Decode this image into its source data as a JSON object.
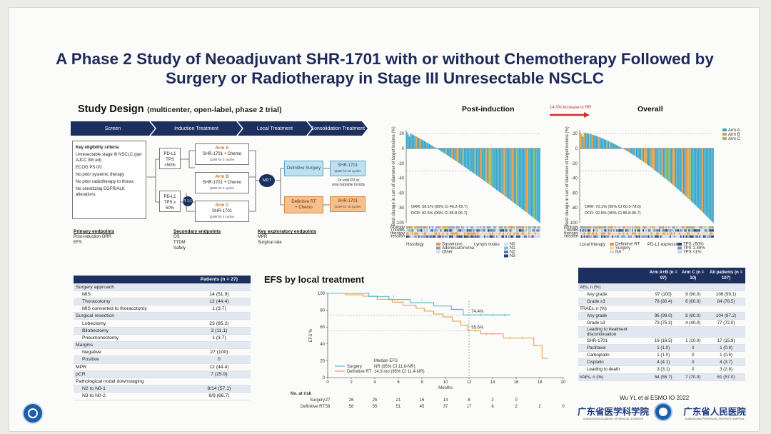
{
  "title_line1": "A Phase 2 Study of Neoadjuvant SHR-1701 with or without Chemotherapy Followed by",
  "title_line2": "Surgery or Radiotherapy in Stage III Unresectable NSCLC",
  "study_design": {
    "title": "Study Design",
    "subtitle": "(multicenter, open-label, phase 2 trial)",
    "phases": [
      "Screen",
      "Induction Treatment",
      "Local Treatment",
      "Consolidation Treatment"
    ],
    "criteria_title": "Key eligibility criteria",
    "criteria": [
      "Unresectable stage III NSCLC (per AJCC 8th ed)",
      "ECOG PS 0/1",
      "No prior systemic therapy",
      "No prior radiotherapy to thorax",
      "No sensitizing EGFR/ALK alterations"
    ],
    "strata": [
      "PD-L1 TPS <50%",
      "PD-L1 TPS ≥ 50%"
    ],
    "arms": [
      {
        "name": "Arm A",
        "regimen": "SHR-1701 + Chemo",
        "sched": "Q3W for 3 cycles"
      },
      {
        "name": "Arm B",
        "regimen": "SHR-1701 + Chemo",
        "sched": "Q3W for 3 cycles"
      },
      {
        "name": "Arm C",
        "regimen": "SHR-1701",
        "sched": "Q3W for 3 cycles"
      }
    ],
    "randomize": "R 1:1",
    "mdt": "MDT",
    "local_surgery": "Definitive Surgery",
    "local_rt_line1": "Definitive RT",
    "local_rt_line2": "+ Chemo",
    "consol_a_name": "SHR-1701",
    "consol_a_sched": "Q3W for 16 cycles",
    "consol_b_name": "SHR-1701",
    "consol_b_sched": "Q3W for 16 cycles",
    "consol_note": "Or until PD or unacceptable toxicity",
    "primary_title": "Primary endpoints",
    "primary": [
      "Post-induction ORR",
      "EFS"
    ],
    "secondary_title": "Secondary endpoints",
    "secondary": [
      "OS",
      "TTDM",
      "Safety"
    ],
    "exploratory_title": "Key exploratory endpoints",
    "exploratory": [
      "MPR",
      "Surgical rate"
    ]
  },
  "waterfall": {
    "post_title": "Post-induction",
    "overall_title": "Overall",
    "increase_label": "14.0% increase in RR",
    "ylabel": "Best change in sum of diameter of target lesions (%)",
    "yticks": [
      "20",
      "0",
      "-20",
      "-40",
      "-60",
      "-80",
      "-100"
    ],
    "post_orr": "ORR: 58.1% (95% CI 46.2-69.7)",
    "post_dcr": "DCR: 92.5% (95% CI 85.8-96.7)",
    "overall_orr": "ORR: 70.1% (95% CI 60.5-78.6)",
    "overall_dcr": "DCR: 92.5% (95% CI 85.8-96.7)",
    "legend_arms": [
      {
        "label": "Arm A",
        "color": "#3aa7c9"
      },
      {
        "label": "Arm B",
        "color": "#e39b43"
      },
      {
        "label": "Arm C",
        "color": "#9ab86a"
      }
    ],
    "row_labels": [
      "Histology",
      "Lymph nodes",
      "Local therapy",
      "PD-L1 expression"
    ],
    "footer_post": [
      "Histology",
      "Lymph nodes"
    ],
    "footer_overall": [
      "Local therapy",
      "PD-L1 expression"
    ],
    "hist_items": [
      "Squamous",
      "Adenocarcinoma",
      "Other"
    ],
    "node_items": [
      "N0",
      "N1",
      "N2",
      "N3"
    ],
    "local_items": [
      "Definitive RT",
      "Surgery",
      "NA"
    ],
    "pdl1_items": [
      "TPS ≥50%",
      "TPS 1-49%",
      "TPS <1%"
    ]
  },
  "surgery_table": {
    "header": [
      "",
      "Patients (n = 27)"
    ],
    "rows": [
      [
        "Surgery approach",
        ""
      ],
      [
        "MIS",
        "14 (51.9)"
      ],
      [
        "Thoracotomy",
        "12 (44.4)"
      ],
      [
        "MIS converted to thoracotomy",
        "1 (3.7)"
      ],
      [
        "Surgical resection",
        ""
      ],
      [
        "Lobectomy",
        "23 (85.2)"
      ],
      [
        "Bilobectomy",
        "3 (11.1)"
      ],
      [
        "Pneumonectomy",
        "1 (3.7)"
      ],
      [
        "Margins",
        ""
      ],
      [
        "Negative",
        "27 (100)"
      ],
      [
        "Positive",
        "0"
      ],
      [
        "MPR",
        "12 (44.4)"
      ],
      [
        "pCR",
        "7 (25.9)"
      ],
      [
        "Pathological nodal downstaging",
        ""
      ],
      [
        "N2 to N0-1",
        "8/14 (57.1)"
      ],
      [
        "N3 to N0-2",
        "6/9 (66.7)"
      ]
    ],
    "indent": [
      false,
      true,
      true,
      true,
      false,
      true,
      true,
      true,
      false,
      true,
      true,
      false,
      false,
      false,
      true,
      true
    ]
  },
  "efs": {
    "title": "EFS by local treatment",
    "ylabel": "EFS %",
    "xlabel": "Months",
    "xticks": [
      "0",
      "2",
      "4",
      "6",
      "8",
      "10",
      "12",
      "14",
      "16",
      "18",
      "20"
    ],
    "yticks": [
      "100",
      "80",
      "60",
      "40",
      "20",
      "0"
    ],
    "label_surgery_rate": "74.4%",
    "label_rt_rate": "55.6%",
    "legend_head": "Median EFS",
    "legend_surgery": "Surgery",
    "legend_surgery_val": "NR (95% CI 11.8-NR)",
    "legend_rt": "Definitive RT",
    "legend_rt_val": "14.9 mo (95% CI 11.4-NR)",
    "risk_title": "No. at risk",
    "risk_surgery_label": "Surgery",
    "risk_rt_label": "Definitive RT",
    "risk_surgery": [
      "27",
      "26",
      "25",
      "21",
      "16",
      "14",
      "8",
      "2",
      "0"
    ],
    "risk_rt": [
      "59",
      "58",
      "55",
      "51",
      "45",
      "37",
      "17",
      "6",
      "2",
      "2",
      "0"
    ],
    "surgery_color": "#56b7c8",
    "rt_color": "#e8a23e"
  },
  "ae_table": {
    "header": [
      "",
      "Arm A+B (n = 97)",
      "Arm C (n = 10)",
      "All patients (n = 107)"
    ],
    "rows": [
      [
        "AEs, n (%)",
        "",
        "",
        ""
      ],
      [
        "Any grade",
        "97 (100)",
        "9 (90.0)",
        "106 (99.1)"
      ],
      [
        "Grade ≥3",
        "78 (80.4)",
        "6 (60.0)",
        "84 (78.5)"
      ],
      [
        "TRAEs, n (%)",
        "",
        "",
        ""
      ],
      [
        "Any grade",
        "96 (99.0)",
        "8 (80.0)",
        "104 (97.2)"
      ],
      [
        "Grade ≥3",
        "73 (75.3)",
        "4 (40.0)",
        "77 (72.0)"
      ],
      [
        "Leading to treatment discontinuation",
        "",
        "",
        ""
      ],
      [
        "SHR-1701",
        "16 (16.5)",
        "1 (10.0)",
        "17 (15.9)"
      ],
      [
        "Paclitaxel",
        "1 (1.0)",
        "0",
        "1 (0.9)"
      ],
      [
        "Carboplatin",
        "1 (1.0)",
        "0",
        "1 (0.9)"
      ],
      [
        "Cisplatin",
        "4 (4.1)",
        "0",
        "4 (3.7)"
      ],
      [
        "Leading to death",
        "3 (3.1)",
        "0",
        "3 (2.8)"
      ],
      [
        "irAEs, n (%)",
        "54 (55.7)",
        "7 (70.0)",
        "61 (57.0)"
      ]
    ],
    "indent": [
      false,
      true,
      true,
      false,
      true,
      true,
      true,
      true,
      true,
      true,
      true,
      true,
      false
    ]
  },
  "citation": "Wu YL et al ESMO IO 2022",
  "logo_text1": "广东省医学科学院",
  "logo_text2": "广东省人民医院",
  "logo_sub1": "GUANGDONG ACADEMY OF MEDICAL SCIENCES",
  "logo_sub2": "GUANGDONG PROVINCIAL PEOPLE'S HOSPITAL",
  "colors": {
    "navy": "#1c2f5e",
    "title": "#1e2b5a",
    "arm_a": "#3aa7c9",
    "arm_b": "#e39b43",
    "arm_c": "#9ab86a"
  }
}
